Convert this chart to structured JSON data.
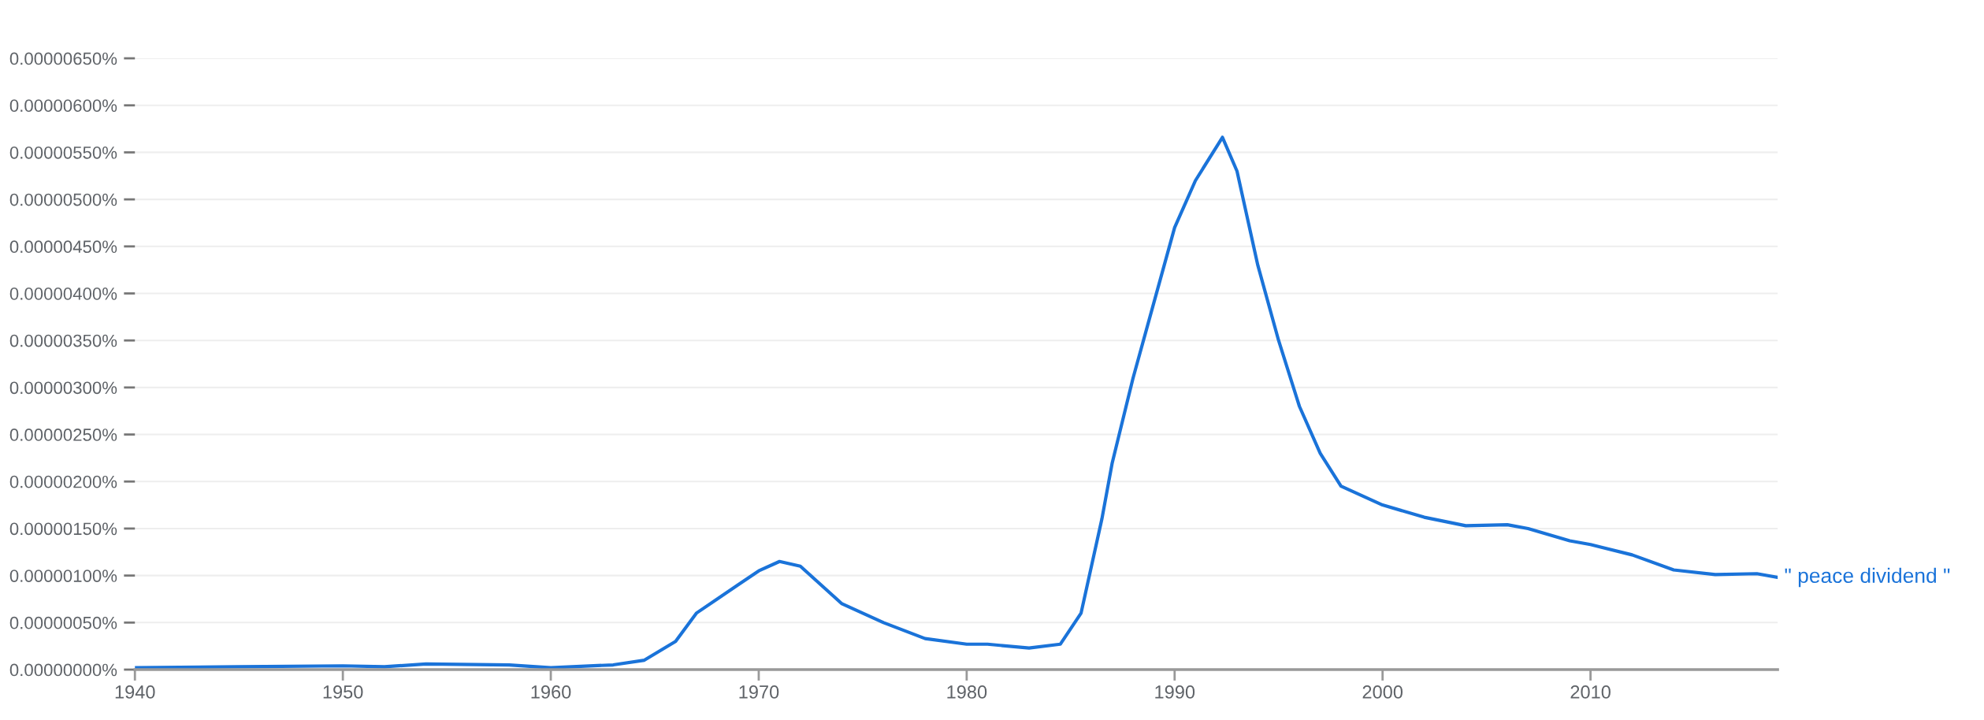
{
  "chart_data": {
    "type": "line",
    "x": [
      1940,
      1945,
      1950,
      1952,
      1954,
      1958,
      1960,
      1963,
      1964.5,
      1966,
      1967,
      1969,
      1970,
      1971,
      1972,
      1974,
      1976,
      1978,
      1980,
      1981,
      1983,
      1984.5,
      1985.5,
      1986.5,
      1987,
      1988,
      1989,
      1990,
      1991,
      1992.3,
      1993,
      1994,
      1995,
      1996,
      1997,
      1998,
      2000,
      2002,
      2004,
      2006,
      2007,
      2009,
      2010,
      2012,
      2014,
      2016,
      2018,
      2019
    ],
    "series": [
      {
        "name": "\" peace dividend \"",
        "color": "#1a73d9",
        "values": [
          2e-08,
          3e-08,
          4e-08,
          3e-08,
          6e-08,
          5e-08,
          2e-08,
          5e-08,
          1e-07,
          3e-07,
          6e-07,
          9e-07,
          1.05e-06,
          1.15e-06,
          1.1e-06,
          7e-07,
          5e-07,
          3.3e-07,
          2.7e-07,
          2.7e-07,
          2.3e-07,
          2.7e-07,
          6e-07,
          1.6e-06,
          2.2e-06,
          3.1e-06,
          3.9e-06,
          4.7e-06,
          5.2e-06,
          5.66e-06,
          5.3e-06,
          4.3e-06,
          3.5e-06,
          2.8e-06,
          2.3e-06,
          1.95e-06,
          1.75e-06,
          1.62e-06,
          1.53e-06,
          1.54e-06,
          1.5e-06,
          1.37e-06,
          1.33e-06,
          1.22e-06,
          1.06e-06,
          1.01e-06,
          1.02e-06,
          9.8e-07
        ]
      }
    ],
    "xlim": [
      1940,
      2019
    ],
    "xticks": [
      1940,
      1950,
      1960,
      1970,
      1980,
      1990,
      2000,
      2010
    ],
    "ylim": [
      0,
      6.5e-06
    ],
    "yticks": [
      {
        "value": 0,
        "label": "0.00000000%"
      },
      {
        "value": 5e-07,
        "label": "0.00000050%"
      },
      {
        "value": 1e-06,
        "label": "0.00000100%"
      },
      {
        "value": 1.5e-06,
        "label": "0.00000150%"
      },
      {
        "value": 2e-06,
        "label": "0.00000200%"
      },
      {
        "value": 2.5e-06,
        "label": "0.00000250%"
      },
      {
        "value": 3e-06,
        "label": "0.00000300%"
      },
      {
        "value": 3.5e-06,
        "label": "0.00000350%"
      },
      {
        "value": 4e-06,
        "label": "0.00000400%"
      },
      {
        "value": 4.5e-06,
        "label": "0.00000450%"
      },
      {
        "value": 5e-06,
        "label": "0.00000500%"
      },
      {
        "value": 5.5e-06,
        "label": "0.00000550%"
      },
      {
        "value": 6e-06,
        "label": "0.00000600%"
      },
      {
        "value": 6.5e-06,
        "label": "0.00000650%"
      }
    ],
    "grid": "y",
    "line_style": "solid",
    "marker": "none"
  }
}
